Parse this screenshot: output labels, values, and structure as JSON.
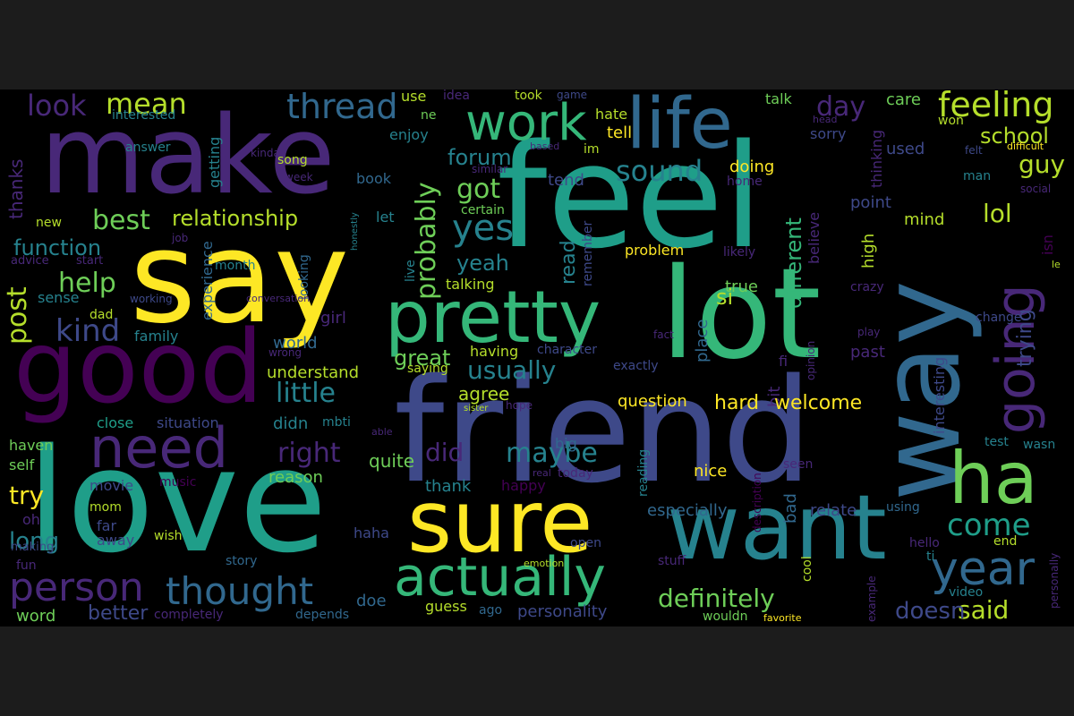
{
  "words": [
    "make",
    "say",
    "feel",
    "friend",
    "love",
    "way",
    "good",
    "lot",
    "want",
    "sure",
    "pretty",
    "work",
    "life",
    "going",
    "ha",
    "need",
    "actually",
    "thought",
    "year",
    "person",
    "feeling",
    "thread",
    "look",
    "mean",
    "best",
    "relationship",
    "function",
    "help",
    "kind",
    "post",
    "sound",
    "yes",
    "got",
    "probably",
    "forum",
    "lol",
    "guy",
    "school",
    "day",
    "tell",
    "hate",
    "care",
    "won",
    "little",
    "right",
    "did",
    "maybe",
    "usually",
    "agree",
    "great",
    "come",
    "definitely",
    "said",
    "doesn",
    "personality",
    "try",
    "long",
    "better",
    "word",
    "quite",
    "reason",
    "understand",
    "world",
    "girl",
    "family",
    "sense",
    "advice",
    "start",
    "new",
    "thanks",
    "interested",
    "answer",
    "getting",
    "kinda",
    "song",
    "book",
    "week",
    "job",
    "let",
    "read",
    "yeah",
    "talking",
    "certain",
    "tend",
    "doing",
    "home",
    "man",
    "social",
    "difficult",
    "used",
    "sorry",
    "thinking",
    "mind",
    "point",
    "high",
    "believe",
    "different",
    "likely",
    "problem",
    "remember",
    "live",
    "looking",
    "honestly",
    "month",
    "experience",
    "working",
    "conversation",
    "dad",
    "si",
    "true",
    "crazy",
    "trying",
    "isn",
    "le",
    "fi",
    "past",
    "place",
    "bit",
    "fact",
    "play",
    "change",
    "opinion",
    "interesting",
    "test",
    "wasn",
    "hard",
    "welcome",
    "question",
    "hope",
    "sister",
    "having",
    "character",
    "saying",
    "exactly",
    "situation",
    "close",
    "didn",
    "mbti",
    "able",
    "haven",
    "self",
    "movie",
    "music",
    "mom",
    "oh",
    "far",
    "away",
    "wish",
    "haha",
    "fun",
    "making",
    "story",
    "happy",
    "thank",
    "nice",
    "seen",
    "bad",
    "description",
    "especially",
    "relate",
    "using",
    "hello",
    "end",
    "ti",
    "open",
    "stuff",
    "cool",
    "emotion",
    "video",
    "example",
    "personally",
    "depends",
    "completely",
    "doe",
    "guess",
    "ago",
    "reading",
    "today",
    "real",
    "big",
    "use",
    "idea",
    "took",
    "game",
    "ne",
    "enjoy",
    "im",
    "similar",
    "talk",
    "head",
    "felt",
    "based",
    "wouldn",
    "favorite",
    "wrong"
  ],
  "palette": [
    "#440154",
    "#482878",
    "#3e4989",
    "#31688e",
    "#26828e",
    "#1f9e89",
    "#35b779",
    "#6ece58",
    "#b5de2b",
    "#fde725"
  ]
}
